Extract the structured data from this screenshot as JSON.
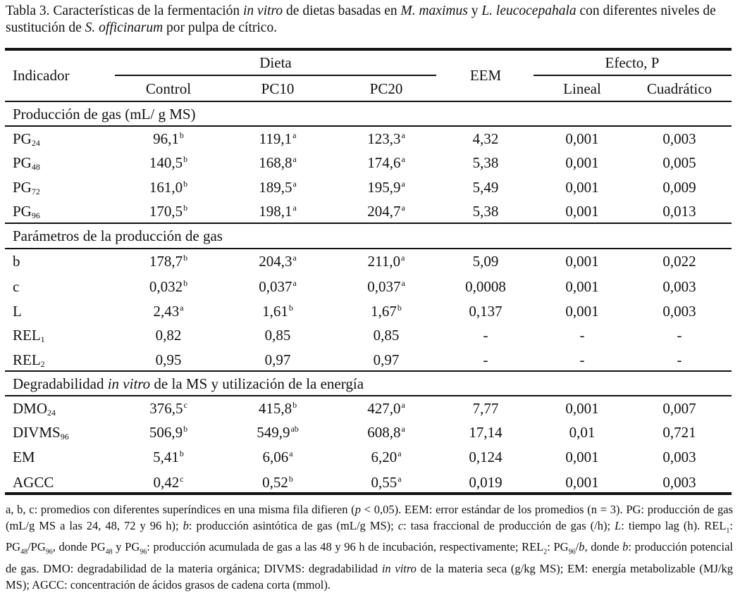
{
  "caption": {
    "t1": "Tabla 3. Características de la fermentación ",
    "t2": "in vitro",
    "t3": " de dietas basadas en ",
    "t4": "M. maximus",
    "t5": " y ",
    "t6": "L. leucocepahala",
    "t7": " con diferentes niveles de sustitución de ",
    "t8": "S. officinarum",
    "t9": " por pulpa de cítrico."
  },
  "headers": {
    "indicador": "Indicador",
    "dieta": "Dieta",
    "eem": "EEM",
    "efecto": "Efecto, P",
    "control": "Control",
    "pc10": "PC10",
    "pc20": "PC20",
    "lineal": "Lineal",
    "cuadratico": "Cuadrático"
  },
  "sections": {
    "gas": "Producción de gas (mL/ g MS)",
    "params": "Parámetros de la producción de gas",
    "degr_a": "Degradabilidad ",
    "degr_b": "in vitro",
    "degr_c": " de la MS y utilización de la energía"
  },
  "rows": [
    {
      "base": "PG",
      "sub": "24",
      "control": "96,1",
      "cs": "b",
      "pc10": "119,1",
      "p10s": "a",
      "pc20": "123,3",
      "p20s": "a",
      "eem": "4,32",
      "lineal": "0,001",
      "cuad": "0,003"
    },
    {
      "base": "PG",
      "sub": "48",
      "control": "140,5",
      "cs": "b",
      "pc10": "168,8",
      "p10s": "a",
      "pc20": "174,6",
      "p20s": "a",
      "eem": "5,38",
      "lineal": "0,001",
      "cuad": "0,005"
    },
    {
      "base": "PG",
      "sub": "72",
      "control": "161,0",
      "cs": "b",
      "pc10": "189,5",
      "p10s": "a",
      "pc20": "195,9",
      "p20s": "a",
      "eem": "5,49",
      "lineal": "0,001",
      "cuad": "0,009"
    },
    {
      "base": "PG",
      "sub": "96",
      "control": "170,5",
      "cs": "b",
      "pc10": "198,1",
      "p10s": "a",
      "pc20": "204,7",
      "p20s": "a",
      "eem": "5,38",
      "lineal": "0,001",
      "cuad": "0,013"
    },
    {
      "base": "b",
      "sub": "",
      "control": "178,7",
      "cs": "b",
      "pc10": "204,3",
      "p10s": "a",
      "pc20": "211,0",
      "p20s": "a",
      "eem": "5,09",
      "lineal": "0,001",
      "cuad": "0,022"
    },
    {
      "base": "c",
      "sub": "",
      "control": "0,032",
      "cs": "b",
      "pc10": "0,037",
      "p10s": "a",
      "pc20": "0,037",
      "p20s": "a",
      "eem": "0,0008",
      "lineal": "0,001",
      "cuad": "0,003"
    },
    {
      "base": "L",
      "sub": "",
      "control": "2,43",
      "cs": "a",
      "pc10": "1,61",
      "p10s": "b",
      "pc20": "1,67",
      "p20s": "b",
      "eem": "0,137",
      "lineal": "0,001",
      "cuad": "0,003"
    },
    {
      "base": "REL",
      "sub": "1",
      "control": "0,82",
      "cs": "",
      "pc10": "0,85",
      "p10s": "",
      "pc20": "0,85",
      "p20s": "",
      "eem": "-",
      "lineal": "-",
      "cuad": "-"
    },
    {
      "base": "REL",
      "sub": "2",
      "control": "0,95",
      "cs": "",
      "pc10": "0,97",
      "p10s": "",
      "pc20": "0,97",
      "p20s": "",
      "eem": "-",
      "lineal": "-",
      "cuad": "-"
    },
    {
      "base": "DMO",
      "sub": "24",
      "control": "376,5",
      "cs": "c",
      "pc10": "415,8",
      "p10s": "b",
      "pc20": "427,0",
      "p20s": "a",
      "eem": "7,77",
      "lineal": "0,001",
      "cuad": "0,007"
    },
    {
      "base": "DIVMS",
      "sub": "96",
      "control": "506,9",
      "cs": "b",
      "pc10": "549,9",
      "p10s": "ab",
      "pc20": "608,8",
      "p20s": "a",
      "eem": "17,14",
      "lineal": "0,01",
      "cuad": "0,721"
    },
    {
      "base": "EM",
      "sub": "",
      "control": "5,41",
      "cs": "b",
      "pc10": "6,06",
      "p10s": "a",
      "pc20": "6,20",
      "p20s": "a",
      "eem": "0,124",
      "lineal": "0,001",
      "cuad": "0,003"
    },
    {
      "base": "AGCC",
      "sub": "",
      "control": "0,42",
      "cs": "c",
      "pc10": "0,52",
      "p10s": "b",
      "pc20": "0,55",
      "p20s": "a",
      "eem": "0,019",
      "lineal": "0,001",
      "cuad": "0,003"
    }
  ],
  "footnote": {
    "f1": "a, b, c: promedios con diferentes superíndices en una misma fila difieren (",
    "f2": "p",
    "f3": " < 0,05). EEM: error estándar de los promedios (n = 3). PG: producción de gas (mL/g MS a las 24, 48, 72 y 96 h); ",
    "f4": "b",
    "f5": ": producción asintótica de gas (mL/g MS); ",
    "f6": "c",
    "f7": ": tasa fraccional de producción de gas (/h); ",
    "f8": "L",
    "f9": ": tiempo lag (h). REL",
    "s1": "1",
    "f10": ": PG",
    "s2": "48",
    "f11": "/PG",
    "s3": "96",
    "f12": ", donde PG",
    "s4": "48",
    "f13": " y PG",
    "s5": "96",
    "f14": ": producción acumulada de gas a las 48 y 96 h de incubación, respectivamente; REL",
    "s6": "2",
    "f15": ": PG",
    "s7": "96",
    "f16": "/",
    "f17": "b",
    "f18": ", donde ",
    "f19": "b",
    "f20": ": producción potencial de gas. DMO: degradabilidad de la materia orgánica; DIVMS: degradabilidad ",
    "f21": "in vitro",
    "f22": " de la materia seca (g/kg MS); EM: energía metabolizable (MJ/kg MS); AGCC: concentración de ácidos grasos de cadena corta (mmol)."
  }
}
